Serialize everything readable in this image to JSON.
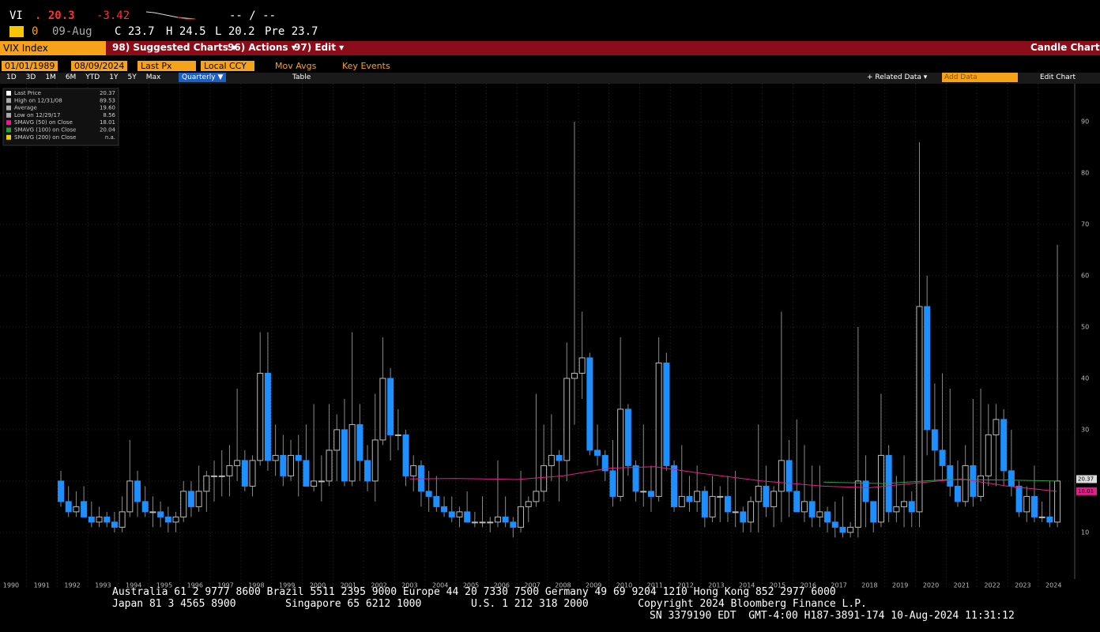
{
  "header": {
    "ticker": "VI",
    "price": ". 20.3",
    "change": "-3.42",
    "bidask": "-- / --",
    "icon": "0",
    "date": "09-Aug",
    "open": "C 23.7",
    "high": "H 24.5",
    "low": "L 20.2",
    "pre": "Pre 23.7"
  },
  "toolbar": {
    "security": "VIX Index",
    "suggested": "98) Suggested Charts ▾",
    "actions": "96) Actions ▾",
    "edit": "97) Edit ▾",
    "chart_kind": "Candle Chart",
    "start_date": "01/01/1989",
    "end_date": "08/09/2024",
    "field": "Last Px",
    "currency": "Local CCY",
    "mov_avgs": "Mov Avgs",
    "key_events": "Key Events",
    "ranges": [
      "1D",
      "3D",
      "1M",
      "6M",
      "YTD",
      "1Y",
      "5Y",
      "Max"
    ],
    "period": "Quarterly ▼",
    "table": "Table",
    "related": "+ Related Data ▾",
    "add_data": "Add Data",
    "edit_chart": "Edit Chart"
  },
  "chart_data": {
    "type": "candlestick",
    "legend": [
      {
        "label": "Last Price",
        "value": "20.37",
        "color": "#ffffff"
      },
      {
        "label": "High on 12/31/08",
        "value": "89.53",
        "color": "#aaaaaa"
      },
      {
        "label": "Average",
        "value": "19.60",
        "color": "#aaaaaa"
      },
      {
        "label": "Low on 12/29/17",
        "value": "8.56",
        "color": "#aaaaaa"
      },
      {
        "label": "SMAVG (50) on Close",
        "value": "18.01",
        "color": "#e0208a"
      },
      {
        "label": "SMAVG (100) on Close",
        "value": "20.04",
        "color": "#2e9d3a"
      },
      {
        "label": "SMAVG (200) on Close",
        "value": "n.a.",
        "color": "#f0d000"
      }
    ],
    "up_color": "#bbbbbb",
    "down_color": "#1e8fff",
    "x": [
      1992.125,
      1992.375,
      1992.625,
      1992.875,
      1993.125,
      1993.375,
      1993.625,
      1993.875,
      1994.125,
      1994.375,
      1994.625,
      1994.875,
      1995.125,
      1995.375,
      1995.625,
      1995.875,
      1996.125,
      1996.375,
      1996.625,
      1996.875,
      1997.125,
      1997.375,
      1997.625,
      1997.875,
      1998.125,
      1998.375,
      1998.625,
      1998.875,
      1999.125,
      1999.375,
      1999.625,
      1999.875,
      2000.125,
      2000.375,
      2000.625,
      2000.875,
      2001.125,
      2001.375,
      2001.625,
      2001.875,
      2002.125,
      2002.375,
      2002.625,
      2002.875,
      2003.125,
      2003.375,
      2003.625,
      2003.875,
      2004.125,
      2004.375,
      2004.625,
      2004.875,
      2005.125,
      2005.375,
      2005.625,
      2005.875,
      2006.125,
      2006.375,
      2006.625,
      2006.875,
      2007.125,
      2007.375,
      2007.625,
      2007.875,
      2008.125,
      2008.375,
      2008.625,
      2008.875,
      2009.125,
      2009.375,
      2009.625,
      2009.875,
      2010.125,
      2010.375,
      2010.625,
      2010.875,
      2011.125,
      2011.375,
      2011.625,
      2011.875,
      2012.125,
      2012.375,
      2012.625,
      2012.875,
      2013.125,
      2013.375,
      2013.625,
      2013.875,
      2014.125,
      2014.375,
      2014.625,
      2014.875,
      2015.125,
      2015.375,
      2015.625,
      2015.875,
      2016.125,
      2016.375,
      2016.625,
      2016.875,
      2017.125,
      2017.375,
      2017.625,
      2017.875,
      2018.125,
      2018.375,
      2018.625,
      2018.875,
      2019.125,
      2019.375,
      2019.625,
      2019.875,
      2020.125,
      2020.375,
      2020.625,
      2020.875,
      2021.125,
      2021.375,
      2021.625,
      2021.875,
      2022.125,
      2022.375,
      2022.625,
      2022.875,
      2023.125,
      2023.375,
      2023.625,
      2023.875,
      2024.125,
      2024.375,
      2024.625
    ],
    "candles": [
      [
        20,
        22,
        15,
        16
      ],
      [
        16,
        19,
        13,
        14
      ],
      [
        14,
        18,
        13,
        15
      ],
      [
        16,
        19,
        13,
        13
      ],
      [
        13,
        16,
        11,
        12
      ],
      [
        12,
        15,
        11,
        13
      ],
      [
        13,
        14,
        11,
        12
      ],
      [
        12,
        14,
        10,
        11
      ],
      [
        11,
        17,
        10,
        14
      ],
      [
        14,
        28,
        13,
        20
      ],
      [
        20,
        22,
        13,
        16
      ],
      [
        16,
        19,
        13,
        14
      ],
      [
        14,
        17,
        11,
        14
      ],
      [
        14,
        16,
        11,
        13
      ],
      [
        13,
        15,
        10,
        12
      ],
      [
        12,
        14,
        10,
        13
      ],
      [
        13,
        20,
        12,
        18
      ],
      [
        18,
        20,
        13,
        15
      ],
      [
        15,
        23,
        14,
        18
      ],
      [
        18,
        22,
        14,
        21
      ],
      [
        21,
        24,
        16,
        21
      ],
      [
        21,
        26,
        17,
        21
      ],
      [
        21,
        27,
        17,
        23
      ],
      [
        23,
        38,
        20,
        24
      ],
      [
        24,
        26,
        18,
        19
      ],
      [
        19,
        25,
        17,
        24
      ],
      [
        24,
        49,
        23,
        41
      ],
      [
        41,
        49,
        22,
        24
      ],
      [
        24,
        31,
        21,
        25
      ],
      [
        25,
        29,
        19,
        21
      ],
      [
        21,
        28,
        20,
        25
      ],
      [
        25,
        29,
        17,
        24
      ],
      [
        24,
        31,
        19,
        19
      ],
      [
        19,
        35,
        18,
        20
      ],
      [
        20,
        25,
        16,
        20
      ],
      [
        20,
        35,
        19,
        26
      ],
      [
        26,
        33,
        20,
        30
      ],
      [
        30,
        36,
        19,
        20
      ],
      [
        20,
        49,
        19,
        31
      ],
      [
        31,
        35,
        20,
        24
      ],
      [
        24,
        27,
        18,
        20
      ],
      [
        20,
        37,
        16,
        28
      ],
      [
        28,
        48,
        27,
        40
      ],
      [
        40,
        42,
        24,
        29
      ],
      [
        29,
        34,
        26,
        29
      ],
      [
        29,
        30,
        19,
        21
      ],
      [
        21,
        25,
        18,
        23
      ],
      [
        23,
        24,
        15,
        18
      ],
      [
        18,
        22,
        14,
        17
      ],
      [
        17,
        21,
        14,
        15
      ],
      [
        15,
        17,
        13,
        14
      ],
      [
        14,
        17,
        12,
        13
      ],
      [
        13,
        15,
        11,
        14
      ],
      [
        14,
        18,
        12,
        12
      ],
      [
        12,
        14,
        11,
        12
      ],
      [
        12,
        17,
        11,
        12
      ],
      [
        12,
        13,
        10,
        12
      ],
      [
        12,
        24,
        11,
        13
      ],
      [
        13,
        17,
        11,
        12
      ],
      [
        12,
        13,
        9,
        11
      ],
      [
        11,
        22,
        10,
        15
      ],
      [
        15,
        17,
        12,
        16
      ],
      [
        16,
        37,
        15,
        18
      ],
      [
        18,
        31,
        16,
        23
      ],
      [
        23,
        33,
        20,
        25
      ],
      [
        25,
        26,
        16,
        24
      ],
      [
        24,
        47,
        20,
        40
      ],
      [
        40,
        90,
        31,
        41
      ],
      [
        41,
        53,
        36,
        44
      ],
      [
        44,
        45,
        25,
        26
      ],
      [
        26,
        31,
        23,
        25
      ],
      [
        25,
        26,
        20,
        22
      ],
      [
        22,
        28,
        15,
        17
      ],
      [
        17,
        48,
        16,
        34
      ],
      [
        34,
        35,
        21,
        23
      ],
      [
        23,
        24,
        16,
        18
      ],
      [
        18,
        31,
        15,
        18
      ],
      [
        18,
        23,
        14,
        17
      ],
      [
        17,
        48,
        16,
        43
      ],
      [
        43,
        45,
        22,
        23
      ],
      [
        23,
        24,
        14,
        15
      ],
      [
        15,
        27,
        15,
        17
      ],
      [
        17,
        21,
        14,
        16
      ],
      [
        16,
        23,
        14,
        18
      ],
      [
        18,
        19,
        11,
        13
      ],
      [
        13,
        21,
        12,
        17
      ],
      [
        17,
        19,
        12,
        17
      ],
      [
        17,
        21,
        12,
        14
      ],
      [
        14,
        22,
        11,
        14
      ],
      [
        14,
        15,
        10,
        12
      ],
      [
        12,
        17,
        10,
        16
      ],
      [
        16,
        31,
        10,
        19
      ],
      [
        19,
        23,
        13,
        15
      ],
      [
        15,
        19,
        11,
        18
      ],
      [
        18,
        53,
        12,
        24
      ],
      [
        24,
        28,
        13,
        18
      ],
      [
        18,
        32,
        14,
        14
      ],
      [
        14,
        27,
        12,
        16
      ],
      [
        16,
        23,
        11,
        13
      ],
      [
        13,
        23,
        11,
        14
      ],
      [
        14,
        15,
        10,
        12
      ],
      [
        12,
        16,
        9,
        11
      ],
      [
        11,
        17,
        9,
        10
      ],
      [
        10,
        12,
        9,
        11
      ],
      [
        11,
        50,
        9,
        20
      ],
      [
        20,
        25,
        11,
        16
      ],
      [
        16,
        16,
        10,
        12
      ],
      [
        12,
        37,
        11,
        25
      ],
      [
        25,
        27,
        12,
        14
      ],
      [
        14,
        21,
        12,
        15
      ],
      [
        15,
        25,
        11,
        16
      ],
      [
        16,
        18,
        11,
        14
      ],
      [
        14,
        86,
        11,
        54
      ],
      [
        54,
        60,
        25,
        30
      ],
      [
        30,
        39,
        20,
        26
      ],
      [
        26,
        41,
        20,
        23
      ],
      [
        23,
        38,
        17,
        19
      ],
      [
        19,
        24,
        15,
        16
      ],
      [
        16,
        27,
        15,
        23
      ],
      [
        23,
        36,
        15,
        17
      ],
      [
        17,
        38,
        16,
        21
      ],
      [
        21,
        35,
        19,
        29
      ],
      [
        29,
        35,
        19,
        32
      ],
      [
        32,
        34,
        19,
        22
      ],
      [
        22,
        30,
        17,
        19
      ],
      [
        19,
        20,
        13,
        14
      ],
      [
        14,
        19,
        12,
        17
      ],
      [
        17,
        23,
        12,
        13
      ],
      [
        13,
        16,
        12,
        13
      ],
      [
        13,
        20,
        11,
        12
      ],
      [
        12,
        66,
        11,
        20
      ]
    ],
    "series": [
      {
        "name": "SMAVG (50) on Close",
        "color": "#e0208a",
        "x": [
          2003.5,
          2005,
          2007,
          2008.5,
          2010,
          2011.5,
          2013,
          2015,
          2017,
          2018.5,
          2020,
          2021.5,
          2023,
          2024.6
        ],
        "values": [
          20.4,
          20.5,
          20.3,
          21,
          22.5,
          22.8,
          21.5,
          20,
          19,
          18.7,
          19.6,
          20.4,
          19,
          18.0
        ]
      },
      {
        "name": "SMAVG (100) on Close",
        "color": "#2e9d3a",
        "x": [
          2017,
          2019,
          2021,
          2023,
          2024.6
        ],
        "values": [
          19.8,
          19.5,
          20.3,
          20.2,
          20.0
        ]
      }
    ],
    "last_labels": [
      {
        "label": "20.37",
        "value": 20.37,
        "color": "#dddddd"
      },
      {
        "label": "18.01",
        "value": 18.01,
        "color": "#e0208a"
      }
    ],
    "xlim": [
      1990.14,
      2025.19
    ],
    "ylim": [
      0.9,
      97.4
    ],
    "xticks": [
      {
        "value": 1990.5,
        "label": "1990"
      },
      {
        "value": 1991.5,
        "label": "1991"
      },
      {
        "value": 1992.5,
        "label": "1992"
      },
      {
        "value": 1993.5,
        "label": "1993"
      },
      {
        "value": 1994.5,
        "label": "1994"
      },
      {
        "value": 1995.5,
        "label": "1995"
      },
      {
        "value": 1996.5,
        "label": "1996"
      },
      {
        "value": 1997.5,
        "label": "1997"
      },
      {
        "value": 1998.5,
        "label": "1998"
      },
      {
        "value": 1999.5,
        "label": "1999"
      },
      {
        "value": 2000.5,
        "label": "2000"
      },
      {
        "value": 2001.5,
        "label": "2001"
      },
      {
        "value": 2002.5,
        "label": "2002"
      },
      {
        "value": 2003.5,
        "label": "2003"
      },
      {
        "value": 2004.5,
        "label": "2004"
      },
      {
        "value": 2005.5,
        "label": "2005"
      },
      {
        "value": 2006.5,
        "label": "2006"
      },
      {
        "value": 2007.5,
        "label": "2007"
      },
      {
        "value": 2008.5,
        "label": "2008"
      },
      {
        "value": 2009.5,
        "label": "2009"
      },
      {
        "value": 2010.5,
        "label": "2010"
      },
      {
        "value": 2011.5,
        "label": "2011"
      },
      {
        "value": 2012.5,
        "label": "2012"
      },
      {
        "value": 2013.5,
        "label": "2013"
      },
      {
        "value": 2014.5,
        "label": "2014"
      },
      {
        "value": 2015.5,
        "label": "2015"
      },
      {
        "value": 2016.5,
        "label": "2016"
      },
      {
        "value": 2017.5,
        "label": "2017"
      },
      {
        "value": 2018.5,
        "label": "2018"
      },
      {
        "value": 2019.5,
        "label": "2019"
      },
      {
        "value": 2020.5,
        "label": "2020"
      },
      {
        "value": 2021.5,
        "label": "2021"
      },
      {
        "value": 2022.5,
        "label": "2022"
      },
      {
        "value": 2023.5,
        "label": "2023"
      },
      {
        "value": 2024.5,
        "label": "2024"
      }
    ],
    "yticks": [
      10,
      20,
      30,
      40,
      50,
      60,
      70,
      80,
      90
    ],
    "grid": true
  },
  "footer": {
    "lines": [
      "Australia 61 2 9777 8600 Brazil 5511 2395 9000 Europe 44 20 7330 7500 Germany 49 69 9204 1210 Hong Kong 852 2977 6000",
      "Japan 81 3 4565 8900        Singapore 65 6212 1000        U.S. 1 212 318 2000        Copyright 2024 Bloomberg Finance L.P.",
      "SN 3379190 EDT  GMT-4:00 H187-3891-174 10-Aug-2024 11:31:12"
    ]
  }
}
